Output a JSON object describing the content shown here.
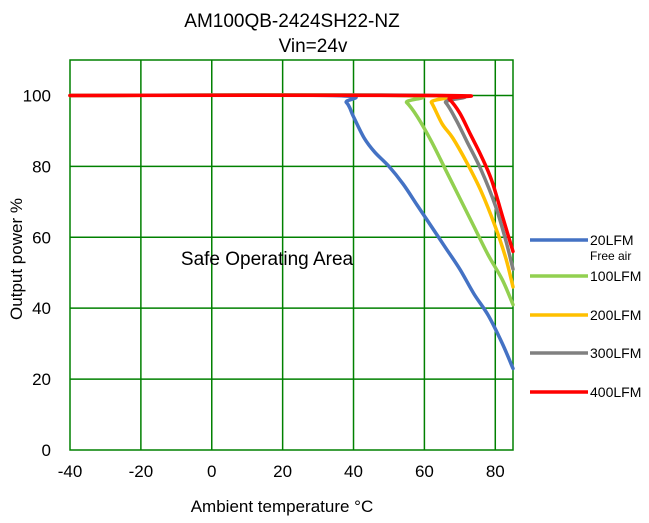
{
  "chart_data": {
    "type": "line",
    "title": "AM100QB-2424SH22-NZ",
    "subtitle": "Vin=24v",
    "xlabel": "Ambient temperature °C",
    "ylabel": "Output power %",
    "xlim": [
      -40,
      85
    ],
    "ylim": [
      0,
      110
    ],
    "x_ticks": [
      -40,
      -20,
      0,
      20,
      40,
      60,
      80
    ],
    "y_ticks": [
      0,
      20,
      40,
      60,
      80,
      100
    ],
    "x_tick_labels": [
      "-40",
      "-20",
      "0",
      "20",
      "40",
      "60",
      "80"
    ],
    "y_tick_labels": [
      "0",
      "20",
      "40",
      "60",
      "80",
      "100"
    ],
    "grid": true,
    "grid_color": "#008000",
    "legend_position": "right",
    "annotations": [
      {
        "text": "Safe Operating Area",
        "x": 15,
        "y": 55
      }
    ],
    "series": [
      {
        "name": "20LFM",
        "sublabel": "Free air",
        "color": "#4472C4",
        "points": [
          [
            -40,
            100
          ],
          [
            34,
            100
          ],
          [
            38,
            98
          ],
          [
            40,
            94
          ],
          [
            43,
            88
          ],
          [
            46,
            84
          ],
          [
            50,
            80
          ],
          [
            54,
            75
          ],
          [
            58,
            69
          ],
          [
            62,
            63
          ],
          [
            66,
            57
          ],
          [
            70,
            51
          ],
          [
            74,
            44
          ],
          [
            78,
            38
          ],
          [
            82,
            30
          ],
          [
            85,
            23
          ]
        ]
      },
      {
        "name": "100LFM",
        "color": "#92D050",
        "points": [
          [
            -40,
            100
          ],
          [
            52,
            100
          ],
          [
            55,
            98
          ],
          [
            58,
            94
          ],
          [
            62,
            87
          ],
          [
            66,
            79
          ],
          [
            70,
            71
          ],
          [
            74,
            63
          ],
          [
            78,
            55
          ],
          [
            82,
            48
          ],
          [
            85,
            41
          ]
        ]
      },
      {
        "name": "200LFM",
        "color": "#FFC000",
        "points": [
          [
            -40,
            100
          ],
          [
            60,
            100
          ],
          [
            62,
            98
          ],
          [
            65,
            92
          ],
          [
            68,
            88
          ],
          [
            72,
            81
          ],
          [
            76,
            73
          ],
          [
            80,
            63
          ],
          [
            83,
            54
          ],
          [
            85,
            46
          ]
        ]
      },
      {
        "name": "300LFM",
        "color": "#808080",
        "points": [
          [
            -40,
            100
          ],
          [
            63,
            100
          ],
          [
            66,
            98
          ],
          [
            69,
            93
          ],
          [
            72,
            87
          ],
          [
            76,
            79
          ],
          [
            80,
            69
          ],
          [
            83,
            59
          ],
          [
            85,
            51
          ]
        ]
      },
      {
        "name": "400LFM",
        "color": "#FF0000",
        "points": [
          [
            -40,
            100
          ],
          [
            65,
            100
          ],
          [
            67,
            99
          ],
          [
            70,
            95
          ],
          [
            73,
            89
          ],
          [
            76,
            83
          ],
          [
            79,
            76
          ],
          [
            82,
            66
          ],
          [
            85,
            56
          ]
        ]
      }
    ]
  }
}
